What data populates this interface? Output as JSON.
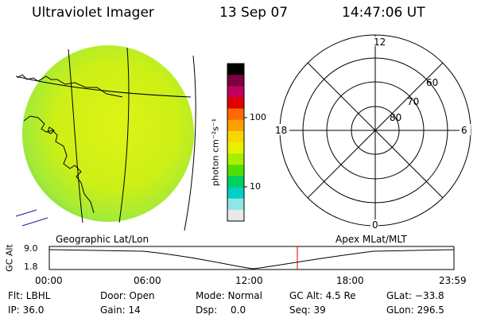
{
  "header": {
    "instrument": "Ultraviolet Imager",
    "date": "13 Sep 07",
    "time": "14:47:06 UT"
  },
  "colorbar": {
    "unit_label": "photon cm⁻²s⁻¹",
    "ticks": [
      "100",
      "10"
    ],
    "colors": [
      "#000000",
      "#7a0040",
      "#c00060",
      "#e00000",
      "#ff6a00",
      "#ff9e00",
      "#f5d800",
      "#e9f000",
      "#a8ee00",
      "#4fe000",
      "#00d060",
      "#00d0c8",
      "#8fe6e6",
      "#e8e8e8"
    ]
  },
  "polar_plot": {
    "mlt_labels": [
      "12",
      "18",
      "6",
      "0"
    ],
    "lat_labels": [
      "60",
      "70",
      "80"
    ]
  },
  "geo_label": "Geographic Lat/Lon",
  "apex_label": "Apex MLat/MLT",
  "timeline": {
    "ylabel": "GC Alt",
    "ytick_top": "9.0",
    "ytick_bottom": "1.8",
    "xticks": [
      "00:00",
      "06:00",
      "12:00",
      "18:00",
      "23:59"
    ],
    "marker_color": "#e00000"
  },
  "info": {
    "flt": "Flt: LBHL",
    "ip": "IP: 36.0",
    "door": "Door: Open",
    "gain": "Gain: 14",
    "mode": "Mode: Normal",
    "dsp_label": "Dsp:",
    "dsp_value": "0.0",
    "gc_alt": "GC Alt: 4.5 Re",
    "seq": "Seq: 39",
    "glat": "GLat: −33.8",
    "glon": "GLon: 296.5"
  }
}
